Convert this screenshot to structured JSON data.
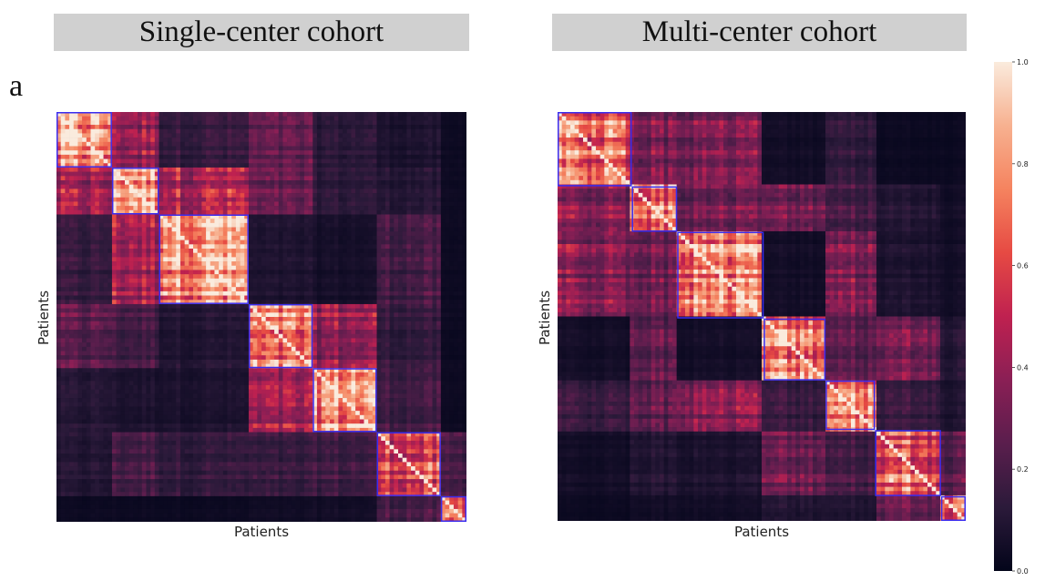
{
  "titles": {
    "left": "Single-center cohort",
    "right": "Multi-center cohort"
  },
  "panel_label": "a",
  "chart_data": [
    {
      "type": "heatmap",
      "title": "Single-center cohort",
      "xlabel": "Patients",
      "ylabel": "Patients",
      "cluster_sizes": [
        13,
        11,
        21,
        15,
        15,
        15,
        6
      ],
      "similarity_matrix": [
        [
          0.8,
          0.4,
          0.15,
          0.25,
          0.12,
          0.08,
          0.03
        ],
        [
          0.4,
          0.8,
          0.45,
          0.25,
          0.12,
          0.1,
          0.03
        ],
        [
          0.15,
          0.45,
          0.85,
          0.08,
          0.06,
          0.2,
          0.03
        ],
        [
          0.25,
          0.2,
          0.1,
          0.7,
          0.4,
          0.15,
          0.03
        ],
        [
          0.1,
          0.08,
          0.08,
          0.4,
          0.8,
          0.18,
          0.03
        ],
        [
          0.1,
          0.2,
          0.15,
          0.15,
          0.18,
          0.6,
          0.2
        ],
        [
          0.03,
          0.03,
          0.03,
          0.04,
          0.05,
          0.2,
          0.7
        ]
      ],
      "cluster_outline_color": "#3a2cf0"
    },
    {
      "type": "heatmap",
      "title": "Multi-center cohort",
      "xlabel": "Patients",
      "ylabel": "Patients",
      "cluster_sizes": [
        18,
        11,
        21,
        15,
        12,
        16,
        6
      ],
      "similarity_matrix": [
        [
          0.75,
          0.35,
          0.35,
          0.05,
          0.15,
          0.03,
          0.03
        ],
        [
          0.35,
          0.7,
          0.3,
          0.3,
          0.2,
          0.1,
          0.05
        ],
        [
          0.35,
          0.3,
          0.75,
          0.05,
          0.35,
          0.08,
          0.05
        ],
        [
          0.05,
          0.25,
          0.05,
          0.7,
          0.25,
          0.3,
          0.1
        ],
        [
          0.15,
          0.25,
          0.35,
          0.15,
          0.75,
          0.15,
          0.08
        ],
        [
          0.05,
          0.1,
          0.08,
          0.3,
          0.2,
          0.65,
          0.25
        ],
        [
          0.03,
          0.05,
          0.05,
          0.1,
          0.1,
          0.3,
          0.7
        ]
      ],
      "cluster_outline_color": "#3a2cf0"
    }
  ],
  "colorbar": {
    "min": 0.0,
    "max": 1.0,
    "ticks": [
      "0.0",
      "0.2",
      "0.4",
      "0.6",
      "0.8",
      "1.0"
    ],
    "colormap": "rocket",
    "colors": [
      "#03051a",
      "#2b1a3a",
      "#5a1e4d",
      "#8a1f55",
      "#bf2150",
      "#e64a43",
      "#f5835f",
      "#f7b190",
      "#faebdd"
    ]
  }
}
